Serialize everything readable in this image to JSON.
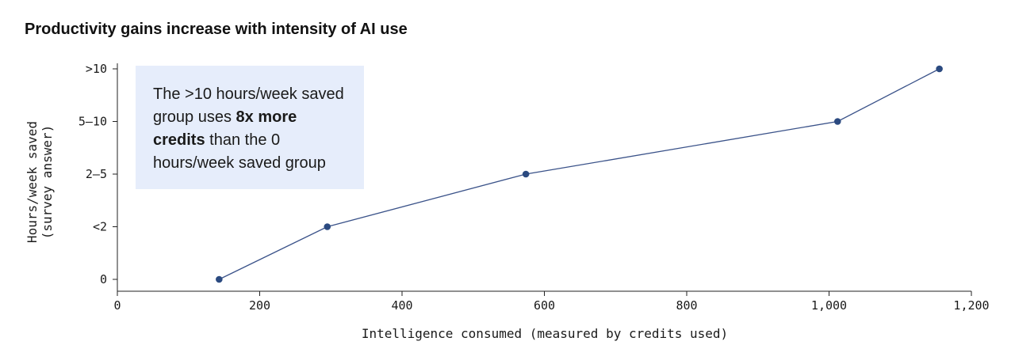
{
  "chart_data": {
    "type": "line",
    "title": "Productivity gains increase with intensity of AI use",
    "xlabel": "Intelligence consumed (measured by credits used)",
    "ylabel_lines": [
      "Hours/week saved",
      "(survey answer)"
    ],
    "xlim": [
      0,
      1200
    ],
    "x_ticks": [
      {
        "value": 0,
        "label": "0"
      },
      {
        "value": 200,
        "label": "200"
      },
      {
        "value": 400,
        "label": "400"
      },
      {
        "value": 600,
        "label": "600"
      },
      {
        "value": 800,
        "label": "800"
      },
      {
        "value": 1000,
        "label": "1,000"
      },
      {
        "value": 1200,
        "label": "1,200"
      }
    ],
    "categories": [
      "0",
      "<2",
      "2—5",
      "5—10",
      ">10"
    ],
    "x": [
      143,
      295,
      574,
      1012,
      1155
    ],
    "y": [
      "0",
      "<2",
      "2—5",
      "5—10",
      ">10"
    ],
    "grid": false,
    "line_color": "#3a5289",
    "marker_color": "#2b4a80",
    "annotation": {
      "segments": [
        {
          "text": "The >10 hours/week saved group uses ",
          "bold": false
        },
        {
          "text": "8x more credits",
          "bold": true
        },
        {
          "text": " than the 0 hours/week saved group",
          "bold": false
        }
      ],
      "background": "#e6edfb"
    }
  }
}
